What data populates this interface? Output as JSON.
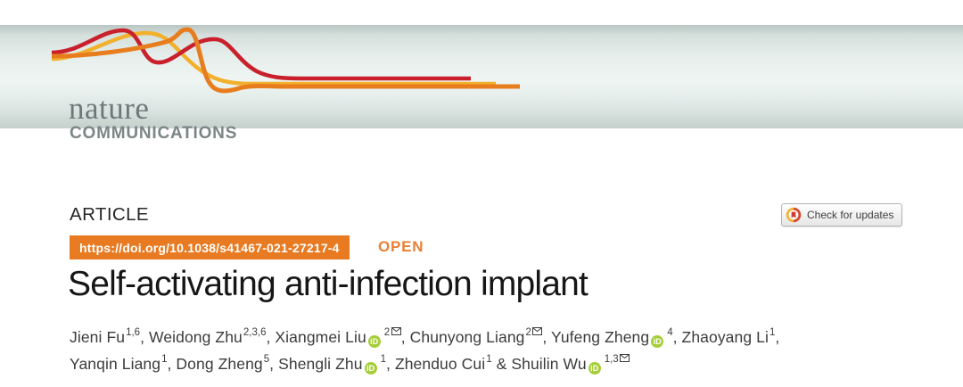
{
  "banner": {
    "brand_top": "nature",
    "brand_bottom": "COMMUNICATIONS"
  },
  "article": {
    "kicker": "ARTICLE",
    "doi": "https://doi.org/10.1038/s41467-021-27217-4",
    "open_label": "OPEN",
    "title": "Self-activating anti-infection implant",
    "check_updates_label": "Check for updates"
  },
  "authors": [
    {
      "name": "Jieni Fu",
      "sup": "1,6",
      "orcid": false,
      "envelope": false,
      "sep": ", ",
      "break_after": false
    },
    {
      "name": "Weidong Zhu",
      "sup": "2,3,6",
      "orcid": false,
      "envelope": false,
      "sep": ", ",
      "break_after": false
    },
    {
      "name": "Xiangmei Liu",
      "sup": "2",
      "orcid": true,
      "envelope": true,
      "sep": ", ",
      "break_after": false
    },
    {
      "name": "Chunyong Liang",
      "sup": "2",
      "orcid": false,
      "envelope": true,
      "sep": ", ",
      "break_after": false
    },
    {
      "name": "Yufeng Zheng",
      "sup": "4",
      "orcid": true,
      "envelope": false,
      "sep": ", ",
      "break_after": false
    },
    {
      "name": "Zhaoyang Li",
      "sup": "1",
      "orcid": false,
      "envelope": false,
      "sep": ",",
      "break_after": true
    },
    {
      "name": "Yanqin Liang",
      "sup": "1",
      "orcid": false,
      "envelope": false,
      "sep": ", ",
      "break_after": false
    },
    {
      "name": "Dong Zheng",
      "sup": "5",
      "orcid": false,
      "envelope": false,
      "sep": ", ",
      "break_after": false
    },
    {
      "name": "Shengli Zhu",
      "sup": "1",
      "orcid": true,
      "envelope": false,
      "sep": ", ",
      "break_after": false
    },
    {
      "name": "Zhenduo Cui",
      "sup": "1",
      "orcid": false,
      "envelope": false,
      "sep": " & ",
      "break_after": false
    },
    {
      "name": "Shuilin Wu",
      "sup": "1,3",
      "orcid": true,
      "envelope": true,
      "sep": "",
      "break_after": false
    }
  ],
  "icons": {
    "orcid_icon_text": "iD",
    "envelope_icon": "email-envelope",
    "crossmark_icon": "crossmark-bookmark"
  },
  "colors": {
    "accent_orange": "#e87a22",
    "open_orange": "#e87f35",
    "orcid_green": "#a6ce39",
    "logo_red": "#c9202c",
    "logo_orange": "#e87d1e",
    "logo_yellow": "#f2b02c",
    "banner_gray_green": "#dce6e4",
    "author_text": "#3c3c3c",
    "title_text": "#161616"
  }
}
